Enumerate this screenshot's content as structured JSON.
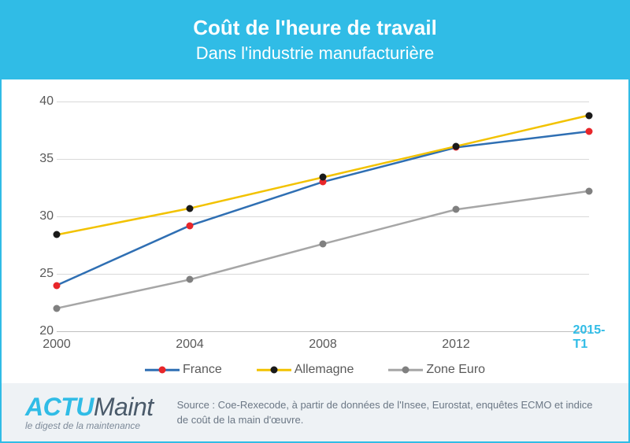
{
  "header": {
    "title": "Coût de l'heure de travail",
    "subtitle": "Dans l'industrie manufacturière"
  },
  "chart": {
    "type": "line",
    "ylim": [
      20,
      40
    ],
    "ytick_step": 5,
    "x_categories": [
      "2000",
      "2004",
      "2008",
      "2012",
      "2015-T1"
    ],
    "x_highlight_last": true,
    "highlight_color": "#30bce6",
    "axis_text_color": "#595959",
    "grid_color": "#d9d9d9",
    "axis_line_color": "#bfbfbf",
    "background_color": "#ffffff",
    "marker_size": 4.5,
    "line_width": 2.5,
    "series": [
      {
        "name": "France",
        "line_color": "#2f6fb3",
        "marker_color": "#e8262a",
        "values": [
          24.0,
          29.2,
          33.0,
          36.0,
          37.4
        ]
      },
      {
        "name": "Allemagne",
        "line_color": "#f2c200",
        "marker_color": "#1a1a1a",
        "values": [
          28.4,
          30.7,
          33.4,
          36.1,
          38.8
        ]
      },
      {
        "name": "Zone Euro",
        "line_color": "#a6a6a6",
        "marker_color": "#808080",
        "values": [
          22.0,
          24.5,
          27.6,
          30.6,
          32.2
        ]
      }
    ]
  },
  "footer": {
    "logo_part1": "ACTU",
    "logo_part2": "Maint",
    "logo_color1": "#30bce6",
    "logo_color2": "#4a5a6a",
    "logo_tag": "le digest de la maintenance",
    "source_label": "Source :",
    "source_text": " Coe-Rexecode, à partir de données de l'Insee, Eurostat, enquêtes ECMO et indice de coût de la main d'œuvre."
  }
}
